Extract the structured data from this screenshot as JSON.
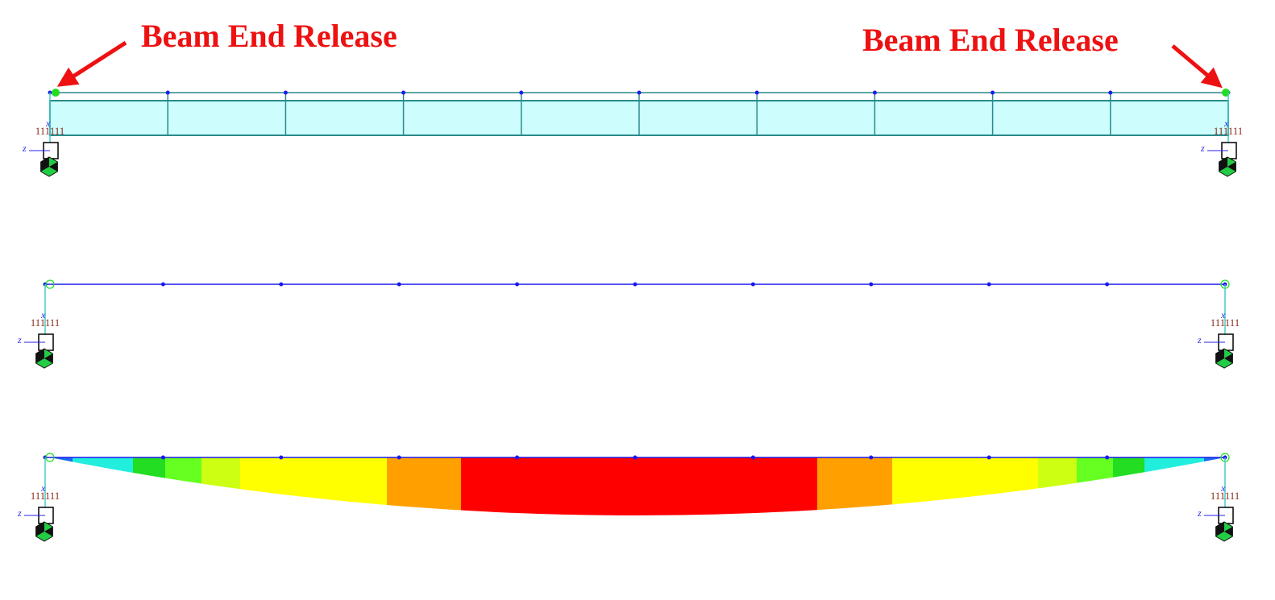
{
  "annotations": [
    {
      "text": "Beam End Release"
    },
    {
      "text": "Beam End Release"
    }
  ],
  "supports": [
    {
      "code": "111111",
      "x_label": "x",
      "z_label": "z"
    },
    {
      "code": "111111",
      "x_label": "x",
      "z_label": "z"
    },
    {
      "code": "111111",
      "x_label": "x",
      "z_label": "z"
    },
    {
      "code": "111111",
      "x_label": "x",
      "z_label": "z"
    },
    {
      "code": "111111",
      "x_label": "x",
      "z_label": "z"
    },
    {
      "code": "111111",
      "x_label": "x",
      "z_label": "z"
    }
  ]
}
